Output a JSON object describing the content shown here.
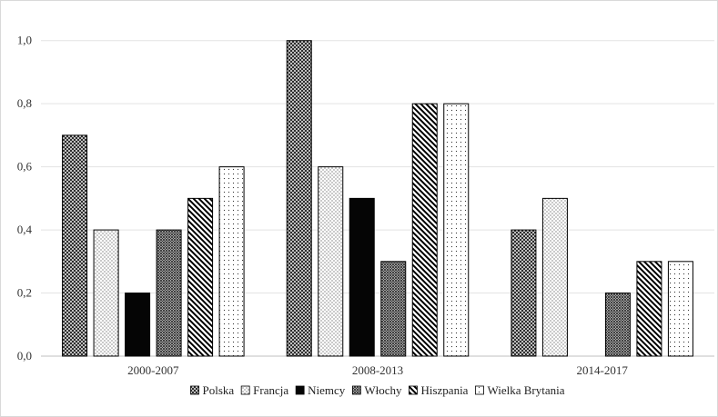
{
  "chart_data": {
    "type": "bar",
    "categories": [
      "2000-2007",
      "2008-2013",
      "2014-2017"
    ],
    "series": [
      {
        "name": "Polska",
        "values": [
          0.7,
          1.0,
          0.4
        ],
        "pattern": "crosshatch"
      },
      {
        "name": "Francja",
        "values": [
          0.4,
          0.6,
          0.5
        ],
        "pattern": "dots"
      },
      {
        "name": "Niemcy",
        "values": [
          0.2,
          0.5,
          null
        ],
        "pattern": "solid-black"
      },
      {
        "name": "Włochy",
        "values": [
          0.4,
          0.3,
          0.2
        ],
        "pattern": "dense-crosshatch"
      },
      {
        "name": "Hiszpania",
        "values": [
          0.5,
          0.8,
          0.3
        ],
        "pattern": "diagonal"
      },
      {
        "name": "Wielka Brytania",
        "values": [
          0.6,
          0.8,
          0.3
        ],
        "pattern": "sparse-dots"
      }
    ],
    "yticks": [
      "0,0",
      "0,2",
      "0,4",
      "0,6",
      "0,8",
      "1,0"
    ],
    "ylim": [
      0,
      1.1
    ],
    "grid": true,
    "legend": "bottom",
    "title": "",
    "xlabel": "",
    "ylabel": ""
  }
}
